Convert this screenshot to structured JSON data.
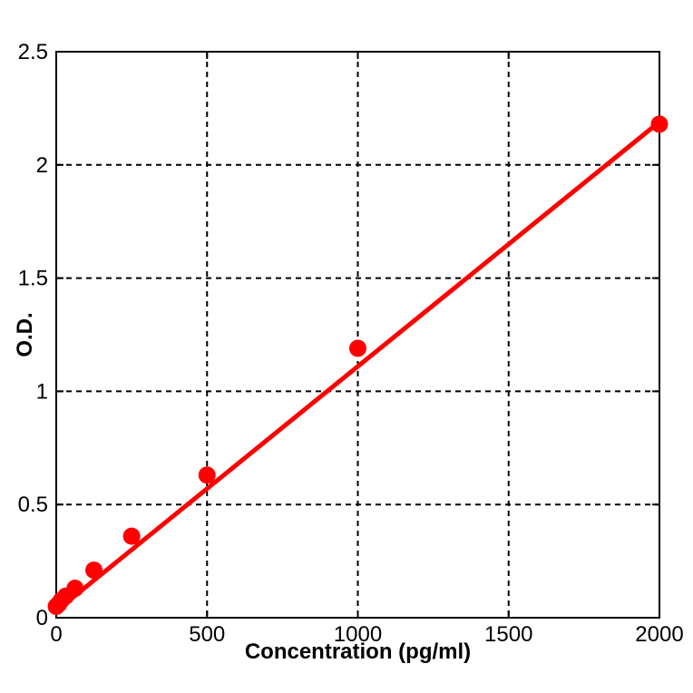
{
  "figure": {
    "background": "#ffffff",
    "plot_area_border_color": "#000000"
  },
  "chart_data": {
    "type": "scatter",
    "title": "",
    "xlabel": "Concentration (pg/ml)",
    "ylabel": "O.D.",
    "xlim": [
      0,
      2000
    ],
    "ylim": [
      0,
      2.5
    ],
    "xticks": [
      0,
      500,
      1000,
      1500,
      2000
    ],
    "xtick_labels": [
      "0",
      "500",
      "1000",
      "1500",
      "2000"
    ],
    "yticks": [
      0,
      0.5,
      1,
      1.5,
      2,
      2.5
    ],
    "ytick_labels": [
      "0",
      "0.5",
      "1",
      "1.5",
      "2",
      "2.5"
    ],
    "grid": {
      "visible": true,
      "style": "dashed",
      "color": "#000000"
    },
    "legend": "none",
    "axis_color": "#000000",
    "series": [
      {
        "name": "standard-points",
        "marker": "filled-circle",
        "color": "#ff0000",
        "x": [
          0,
          7.8,
          15.6,
          31.2,
          62.5,
          125,
          250,
          500,
          1000,
          2000
        ],
        "y": [
          0.05,
          0.06,
          0.075,
          0.095,
          0.13,
          0.21,
          0.36,
          0.63,
          1.19,
          2.18
        ]
      }
    ],
    "fit_line": {
      "name": "linear-fit",
      "color": "#ff0000",
      "x": [
        0,
        2000
      ],
      "y": [
        0.03,
        2.19
      ]
    }
  }
}
